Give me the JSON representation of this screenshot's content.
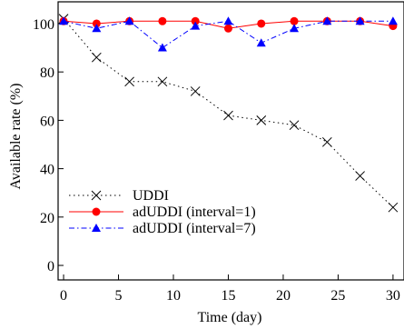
{
  "chart_data": {
    "type": "line",
    "xlabel": "Time (day)",
    "ylabel": "Available rate (%)",
    "xlim": [
      -0.5,
      31
    ],
    "ylim": [
      -6,
      109
    ],
    "x_ticks": [
      0,
      5,
      10,
      15,
      20,
      25,
      30
    ],
    "y_ticks": [
      0,
      20,
      40,
      60,
      80,
      100
    ],
    "grid": false,
    "legend_position": "bottom-left",
    "series": [
      {
        "name": "UDDI",
        "color": "#000000",
        "line_style": "dotted",
        "marker": "x",
        "x": [
          0,
          3,
          6,
          9,
          12,
          15,
          18,
          21,
          24,
          27,
          30
        ],
        "y": [
          102,
          86,
          76,
          76,
          72,
          62,
          60,
          58,
          51,
          37,
          24
        ]
      },
      {
        "name": "adUDDI (interval=1)",
        "color": "#ff0000",
        "line_style": "solid",
        "marker": "circle",
        "x": [
          0,
          3,
          6,
          9,
          12,
          15,
          18,
          21,
          24,
          27,
          30
        ],
        "y": [
          101,
          100,
          101,
          101,
          101,
          98,
          100,
          101,
          101,
          101,
          99
        ]
      },
      {
        "name": "adUDDI (interval=7)",
        "color": "#0000ff",
        "line_style": "dashdot",
        "marker": "triangle",
        "x": [
          0,
          3,
          6,
          9,
          12,
          15,
          18,
          21,
          24,
          27,
          30
        ],
        "y": [
          101,
          98,
          101,
          90,
          99,
          101,
          92,
          98,
          101,
          101,
          101
        ]
      }
    ]
  }
}
